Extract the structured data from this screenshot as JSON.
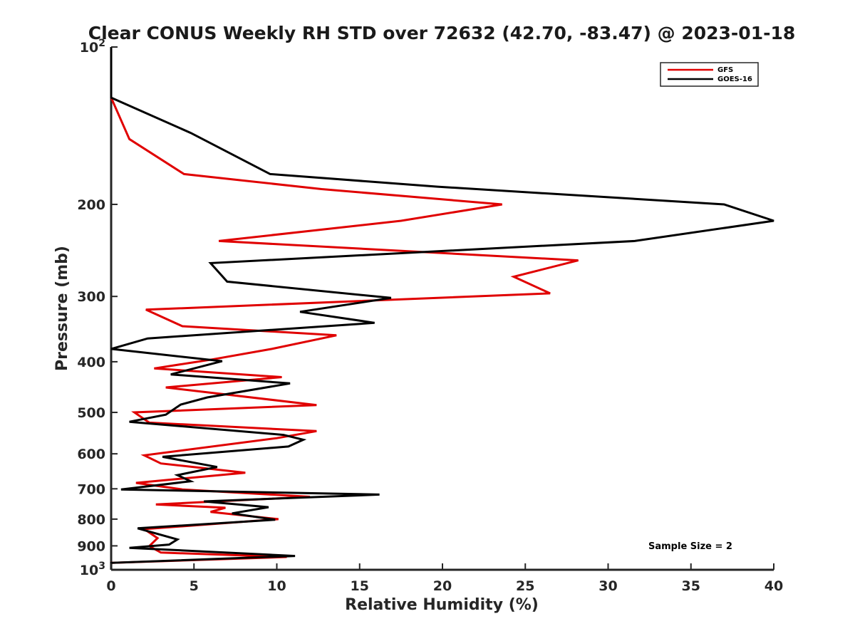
{
  "chart_data": {
    "type": "line",
    "title": "Clear CONUS Weekly RH STD over 72632 (42.70, -83.47) @ 2023-01-18",
    "xlabel": "Relative Humidity (%)",
    "ylabel": "Pressure (mb)",
    "xlim": [
      0,
      40
    ],
    "ylim": [
      100,
      1000
    ],
    "y_scale": "log",
    "y_reversed": true,
    "x_ticks": [
      "0",
      "5",
      "10",
      "15",
      "20",
      "25",
      "30",
      "35",
      "40"
    ],
    "y_ticks": [
      {
        "value": 100,
        "base": "10",
        "exp": "2"
      },
      {
        "value": 200,
        "label": "200"
      },
      {
        "value": 300,
        "label": "300"
      },
      {
        "value": 400,
        "label": "400"
      },
      {
        "value": 500,
        "label": "500"
      },
      {
        "value": 600,
        "label": "600"
      },
      {
        "value": 700,
        "label": "700"
      },
      {
        "value": 800,
        "label": "800"
      },
      {
        "value": 900,
        "label": "900"
      },
      {
        "value": 1000,
        "base": "10",
        "exp": "3"
      }
    ],
    "grid": false,
    "legend_position": "top-right",
    "annotation": "Sample Size = 2",
    "series": [
      {
        "name": "GFS",
        "color": "#e00000",
        "points": [
          [
            0,
            100
          ],
          [
            0,
            125
          ],
          [
            1.1,
            150
          ],
          [
            4.4,
            175
          ],
          [
            12.7,
            187
          ],
          [
            23.6,
            200
          ],
          [
            17.5,
            215
          ],
          [
            6.5,
            235
          ],
          [
            28.2,
            256
          ],
          [
            24.3,
            275
          ],
          [
            26.5,
            296
          ],
          [
            2.1,
            318
          ],
          [
            4.3,
            342
          ],
          [
            13.6,
            356
          ],
          [
            9.7,
            378
          ],
          [
            6.1,
            396
          ],
          [
            2.6,
            412
          ],
          [
            10.3,
            428
          ],
          [
            3.3,
            448
          ],
          [
            12.4,
            484
          ],
          [
            1.4,
            500
          ],
          [
            2.3,
            523
          ],
          [
            12.4,
            543
          ],
          [
            10.0,
            560
          ],
          [
            2.0,
            604
          ],
          [
            3.0,
            626
          ],
          [
            8.1,
            652
          ],
          [
            1.5,
            682
          ],
          [
            4.3,
            702
          ],
          [
            12.0,
            725
          ],
          [
            2.7,
            750
          ],
          [
            6.9,
            761
          ],
          [
            6.0,
            775
          ],
          [
            10.1,
            800
          ],
          [
            2.0,
            836
          ],
          [
            2.8,
            870
          ],
          [
            2.3,
            901
          ],
          [
            3.0,
            927
          ],
          [
            10.6,
            945
          ],
          [
            0,
            970
          ],
          [
            0,
            1000
          ]
        ]
      },
      {
        "name": "GOES-16",
        "color": "#000000",
        "points": [
          [
            0,
            100
          ],
          [
            0,
            125
          ],
          [
            4.8,
            146
          ],
          [
            9.6,
            175
          ],
          [
            19.7,
            185
          ],
          [
            37.0,
            200
          ],
          [
            40.0,
            215
          ],
          [
            31.6,
            235
          ],
          [
            6.0,
            259
          ],
          [
            7.0,
            281
          ],
          [
            16.9,
            302
          ],
          [
            11.4,
            321
          ],
          [
            15.9,
            337
          ],
          [
            2.2,
            361
          ],
          [
            0,
            378
          ],
          [
            6.7,
            399
          ],
          [
            3.6,
            423
          ],
          [
            10.8,
            440
          ],
          [
            5.8,
            468
          ],
          [
            4.2,
            483
          ],
          [
            3.3,
            505
          ],
          [
            1.1,
            521
          ],
          [
            10.4,
            552
          ],
          [
            11.6,
            564
          ],
          [
            10.7,
            581
          ],
          [
            3.1,
            608
          ],
          [
            6.4,
            636
          ],
          [
            4.0,
            659
          ],
          [
            4.8,
            677
          ],
          [
            0.6,
            702
          ],
          [
            16.2,
            718
          ],
          [
            5.6,
            740
          ],
          [
            9.5,
            759
          ],
          [
            7.3,
            780
          ],
          [
            9.9,
            802
          ],
          [
            1.6,
            833
          ],
          [
            4.0,
            875
          ],
          [
            3.5,
            895
          ],
          [
            1.1,
            908
          ],
          [
            11.1,
            941
          ],
          [
            0,
            970
          ],
          [
            0,
            1000
          ]
        ]
      }
    ]
  }
}
